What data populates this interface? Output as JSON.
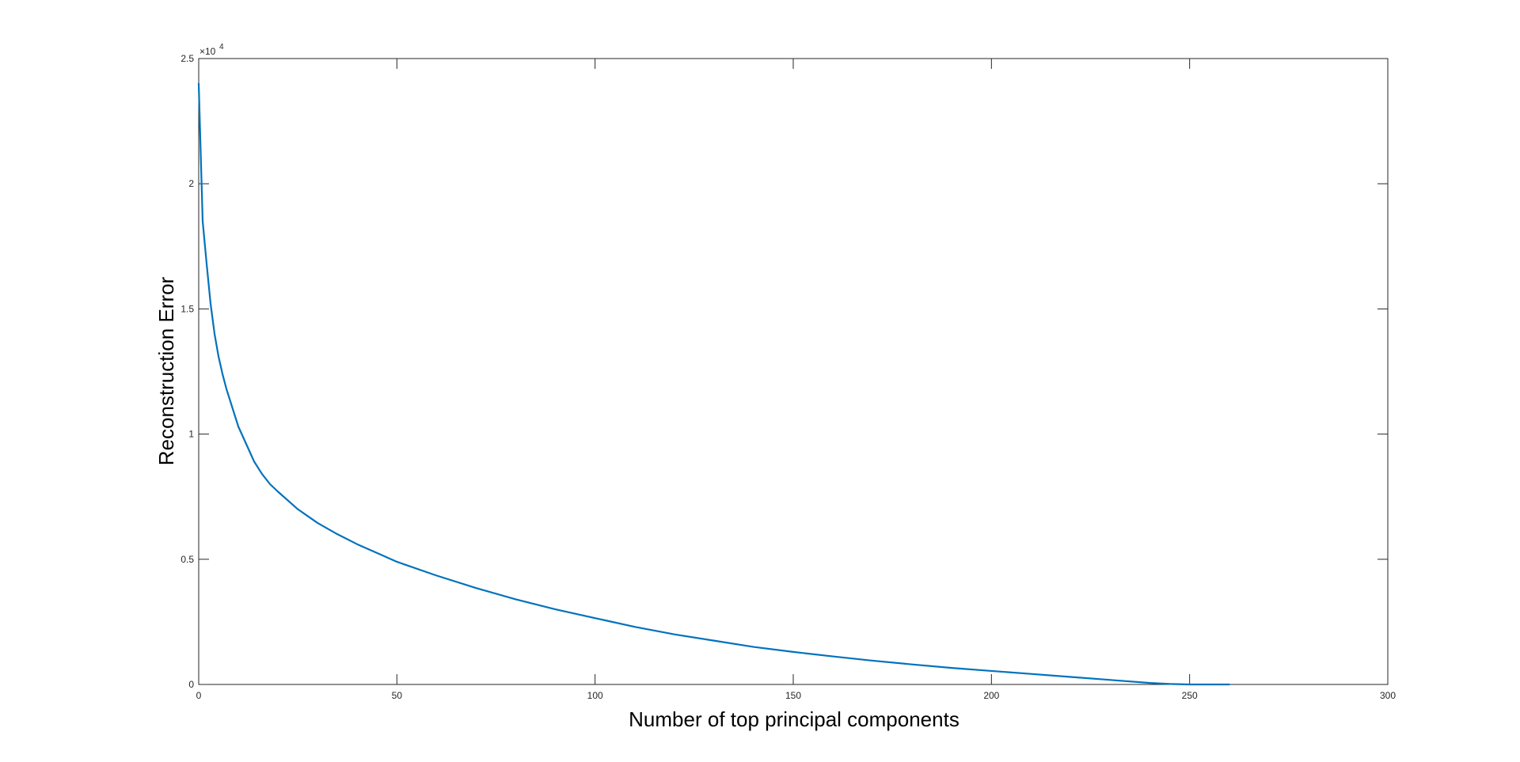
{
  "chart_data": {
    "type": "line",
    "title": "",
    "xlabel": "Number of top principal components",
    "ylabel": "Reconstruction Error",
    "xlim": [
      0,
      300
    ],
    "ylim": [
      0,
      25000
    ],
    "xticks": [
      0,
      50,
      100,
      150,
      200,
      250,
      300
    ],
    "xtick_labels": [
      "0",
      "50",
      "100",
      "150",
      "200",
      "250",
      "300"
    ],
    "yticks": [
      0,
      5000,
      10000,
      15000,
      20000,
      25000
    ],
    "ytick_labels": [
      "0",
      "0.5",
      "1",
      "1.5",
      "2",
      "2.5"
    ],
    "y_exponent_label": {
      "base": "×10",
      "power": "4"
    },
    "grid": false,
    "line_color": "#0072BD",
    "series": [
      {
        "x": [
          0,
          1,
          2,
          3,
          4,
          5,
          6,
          7,
          8,
          10,
          12,
          14,
          16,
          18,
          20,
          25,
          30,
          35,
          40,
          45,
          50,
          60,
          70,
          80,
          90,
          100,
          110,
          120,
          130,
          140,
          150,
          160,
          170,
          180,
          190,
          200,
          210,
          220,
          230,
          240,
          245,
          250,
          255,
          260
        ],
        "values": [
          24000,
          18500,
          16800,
          15200,
          14000,
          13100,
          12400,
          11800,
          11300,
          10300,
          9600,
          8900,
          8400,
          8000,
          7700,
          7000,
          6450,
          6000,
          5600,
          5250,
          4900,
          4350,
          3850,
          3400,
          3000,
          2650,
          2300,
          2000,
          1750,
          1500,
          1300,
          1120,
          950,
          800,
          660,
          540,
          420,
          300,
          180,
          60,
          20,
          0,
          0,
          0
        ]
      }
    ]
  }
}
